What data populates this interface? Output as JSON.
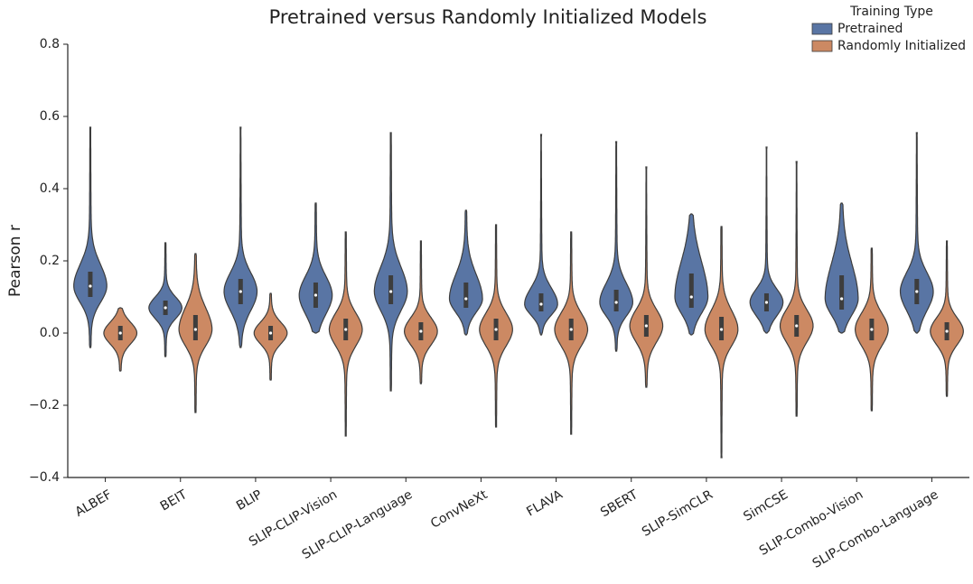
{
  "chart_data": {
    "type": "violin",
    "title": "Pretrained versus Randomly Initialized Models",
    "y_label": "Pearson r",
    "categories": [
      "ALBEF",
      "BEIT",
      "BLIP",
      "SLIP-CLIP-Vision",
      "SLIP-CLIP-Language",
      "ConvNeXt",
      "FLAVA",
      "SBERT",
      "SLIP-SimCLR",
      "SimCSE",
      "SLIP-Combo-Vision",
      "SLIP-Combo-Language"
    ],
    "legend_title": "Training Type",
    "legend_position": "upper right",
    "series": [
      {
        "name": "Pretrained",
        "color": "#5975a4",
        "min": [
          -0.04,
          -0.065,
          -0.04,
          0.0,
          -0.16,
          -0.005,
          -0.005,
          -0.05,
          -0.005,
          0.0,
          0.0,
          0.0
        ],
        "q1": [
          0.1,
          0.05,
          0.08,
          0.07,
          0.08,
          0.07,
          0.06,
          0.06,
          0.07,
          0.06,
          0.065,
          0.08
        ],
        "median": [
          0.13,
          0.07,
          0.115,
          0.105,
          0.115,
          0.095,
          0.08,
          0.085,
          0.1,
          0.085,
          0.095,
          0.115
        ],
        "q3": [
          0.17,
          0.09,
          0.15,
          0.14,
          0.16,
          0.14,
          0.11,
          0.12,
          0.165,
          0.11,
          0.16,
          0.15
        ],
        "max": [
          0.57,
          0.25,
          0.57,
          0.36,
          0.555,
          0.34,
          0.55,
          0.53,
          0.33,
          0.515,
          0.36,
          0.555
        ]
      },
      {
        "name": "Randomly Initialized",
        "color": "#cc8963",
        "min": [
          -0.105,
          -0.22,
          -0.13,
          -0.285,
          -0.14,
          -0.26,
          -0.28,
          -0.15,
          -0.345,
          -0.23,
          -0.215,
          -0.175
        ],
        "q1": [
          -0.02,
          -0.02,
          -0.02,
          -0.02,
          -0.02,
          -0.02,
          -0.02,
          -0.01,
          -0.02,
          -0.01,
          -0.02,
          -0.02
        ],
        "median": [
          0.0,
          0.01,
          0.0,
          0.01,
          0.005,
          0.01,
          0.01,
          0.02,
          0.01,
          0.02,
          0.01,
          0.005
        ],
        "q3": [
          0.02,
          0.05,
          0.02,
          0.04,
          0.03,
          0.04,
          0.04,
          0.05,
          0.045,
          0.05,
          0.04,
          0.03
        ],
        "max": [
          0.07,
          0.22,
          0.11,
          0.28,
          0.255,
          0.3,
          0.28,
          0.46,
          0.295,
          0.475,
          0.235,
          0.255
        ]
      }
    ],
    "ylim": [
      -0.4,
      0.8
    ],
    "yticks": [
      {
        "value": -0.4,
        "label": "−0.4"
      },
      {
        "value": -0.2,
        "label": "−0.2"
      },
      {
        "value": 0,
        "label": "0.0"
      },
      0.2,
      0.4,
      0.6,
      0.8
    ],
    "grid": false
  }
}
